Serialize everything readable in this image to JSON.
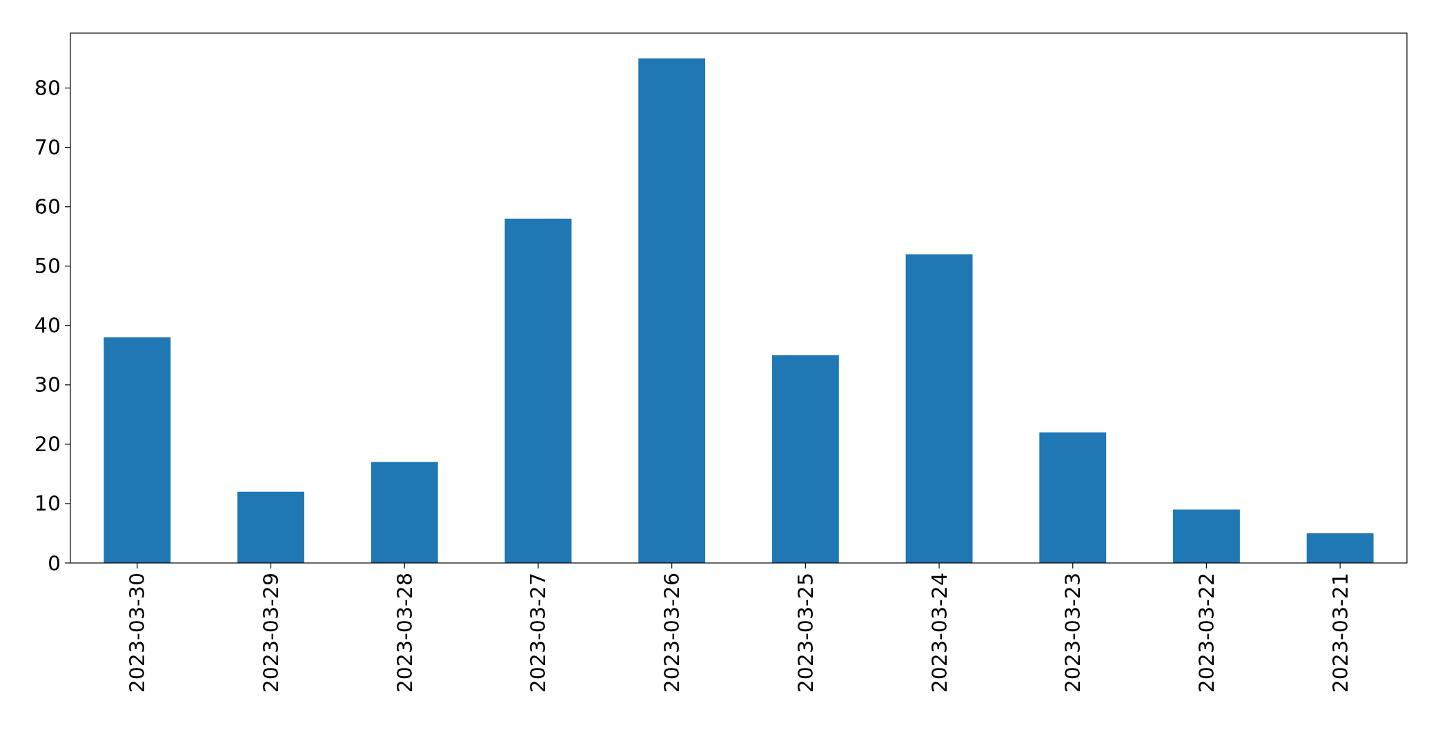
{
  "chart_data": {
    "type": "bar",
    "categories": [
      "2023-03-30",
      "2023-03-29",
      "2023-03-28",
      "2023-03-27",
      "2023-03-26",
      "2023-03-25",
      "2023-03-24",
      "2023-03-23",
      "2023-03-22",
      "2023-03-21"
    ],
    "values": [
      38,
      12,
      17,
      58,
      85,
      35,
      52,
      22,
      9,
      5
    ],
    "color": "#1f77b4",
    "ylim": [
      0,
      89.25
    ],
    "yticks": [
      0,
      10,
      20,
      30,
      40,
      50,
      60,
      70,
      80
    ],
    "grid": false
  }
}
